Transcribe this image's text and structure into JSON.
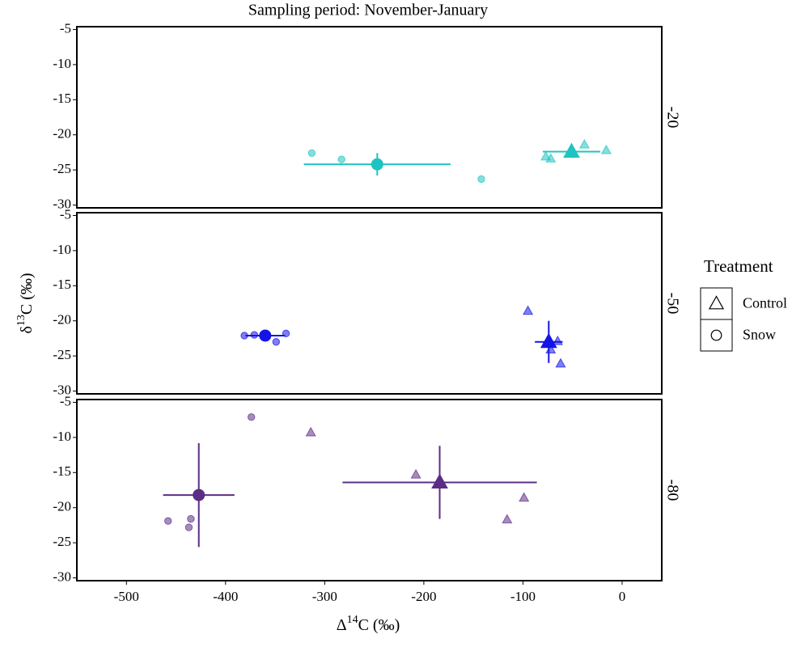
{
  "chart_data": {
    "type": "scatter",
    "title": "Sampling period: November-January",
    "x_label": {
      "prefix": "Δ",
      "sup": "14",
      "suffix": "C (‰)"
    },
    "y_label": {
      "prefix": "δ",
      "sup": "13",
      "suffix": "C (‰)"
    },
    "xlim": [
      -550,
      40
    ],
    "xticks": [
      -500,
      -400,
      -300,
      -200,
      -100,
      0
    ],
    "ylim": [
      -30.4,
      -4.6
    ],
    "yticks": [
      -5,
      -10,
      -15,
      -20,
      -25,
      -30
    ],
    "legend": {
      "title": "Treatment",
      "position": "right",
      "entries": [
        {
          "name": "Control",
          "marker": "triangle"
        },
        {
          "name": "Snow",
          "marker": "circle"
        }
      ]
    },
    "panels": [
      {
        "label": "-20",
        "series": [
          {
            "marker": "triangle",
            "color": "#1fc4c0",
            "x": [
              -77,
              -72,
              -38,
              -16
            ],
            "y": [
              -23.1,
              -23.4,
              -21.4,
              -22.2
            ],
            "mean": {
              "x": -51,
              "y": -22.4,
              "x_err": 29,
              "y_err": 0.7
            }
          },
          {
            "marker": "circle",
            "color": "#1fc4c0",
            "x": [
              -313,
              -283,
              -142
            ],
            "y": [
              -22.6,
              -23.5,
              -26.3
            ],
            "mean": {
              "x": -247,
              "y": -24.2,
              "x_err": 74,
              "y_err": 1.6
            }
          }
        ]
      },
      {
        "label": "-50",
        "series": [
          {
            "marker": "triangle",
            "color": "#1414e6",
            "x": [
              -95,
              -72,
              -65,
              -62
            ],
            "y": [
              -18.6,
              -24.1,
              -22.9,
              -26.1
            ],
            "mean": {
              "x": -74,
              "y": -23.0,
              "x_err": 14,
              "y_err": 3.0
            }
          },
          {
            "marker": "circle",
            "color": "#1414e6",
            "x": [
              -381,
              -371,
              -349,
              -339
            ],
            "y": [
              -22.1,
              -22.0,
              -23.0,
              -21.8
            ],
            "mean": {
              "x": -360,
              "y": -22.1,
              "x_err": 20,
              "y_err": 0.5
            }
          }
        ]
      },
      {
        "label": "-80",
        "series": [
          {
            "marker": "triangle",
            "color": "#5c2d86",
            "x": [
              -314,
              -208,
              -116,
              -99
            ],
            "y": [
              -9.3,
              -15.3,
              -21.7,
              -18.6
            ],
            "mean": {
              "x": -184,
              "y": -16.4,
              "x_err": 98,
              "y_err": 5.2
            }
          },
          {
            "marker": "circle",
            "color": "#5c2d86",
            "x": [
              -374,
              -458,
              -435,
              -437
            ],
            "y": [
              -7.1,
              -21.9,
              -21.6,
              -22.8
            ],
            "mean": {
              "x": -427,
              "y": -18.2,
              "x_err": 36,
              "y_err": 7.4
            }
          }
        ]
      }
    ]
  }
}
